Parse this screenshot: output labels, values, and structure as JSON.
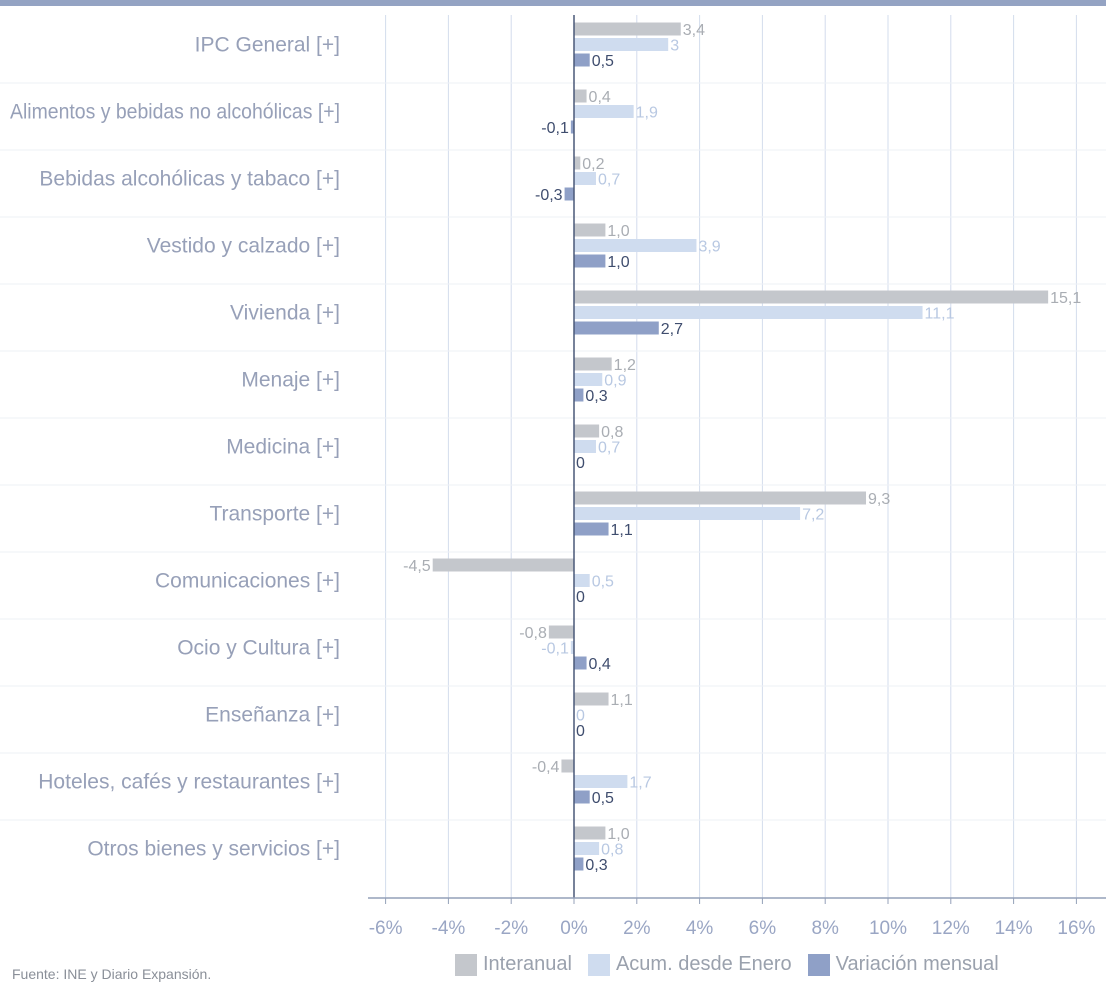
{
  "chart_data": {
    "type": "bar",
    "orientation": "horizontal",
    "categories": [
      "IPC General [+]",
      "Alimentos y bebidas no alcohólicas [+]",
      "Bebidas alcohólicas y tabaco [+]",
      "Vestido y calzado [+]",
      "Vivienda [+]",
      "Menaje [+]",
      "Medicina [+]",
      "Transporte [+]",
      "Comunicaciones [+]",
      "Ocio y Cultura [+]",
      "Enseñanza [+]",
      "Hoteles, cafés y restaurantes [+]",
      "Otros bienes y servicios [+]"
    ],
    "series": [
      {
        "name": "Interanual",
        "color": "#c4c7cc",
        "label_color": "#a9adb3",
        "values": [
          3.4,
          0.4,
          0.2,
          1.0,
          15.1,
          1.2,
          0.8,
          9.3,
          -4.5,
          -0.8,
          1.1,
          -0.4,
          1.0
        ],
        "labels": [
          "3,4",
          "0,4",
          "0,2",
          "1,0",
          "15,1",
          "1,2",
          "0,8",
          "9,3",
          "-4,5",
          "-0,8",
          "1,1",
          "-0,4",
          "1,0"
        ]
      },
      {
        "name": "Acum. desde Enero",
        "color": "#cfdcef",
        "label_color": "#b8c8e2",
        "values": [
          3,
          1.9,
          0.7,
          3.9,
          11.1,
          0.9,
          0.7,
          7.2,
          0.5,
          -0.1,
          0,
          1.7,
          0.8
        ],
        "labels": [
          "3",
          "1,9",
          "0,7",
          "3,9",
          "11,1",
          "0,9",
          "0,7",
          "7,2",
          "0,5",
          "-0,1",
          "0",
          "1,7",
          "0,8"
        ]
      },
      {
        "name": "Variación mensual",
        "color": "#8fa0c7",
        "label_color": "#3f4d6e",
        "values": [
          0.5,
          -0.1,
          -0.3,
          1.0,
          2.7,
          0.3,
          0,
          1.1,
          0,
          0.4,
          0,
          0.5,
          0.3
        ],
        "labels": [
          "0,5",
          "-0,1",
          "-0,3",
          "1,0",
          "2,7",
          "0,3",
          "0",
          "1,1",
          "0",
          "0,4",
          "0",
          "0,5",
          "0,3"
        ]
      }
    ],
    "xlim": [
      -6.5,
      16.5
    ],
    "xticks": [
      -6,
      -4,
      -2,
      0,
      2,
      4,
      6,
      8,
      10,
      12,
      14,
      16
    ],
    "xtick_labels": [
      "-6%",
      "-4%",
      "-2%",
      "0%",
      "2%",
      "4%",
      "6%",
      "8%",
      "10%",
      "12%",
      "14%",
      "16%"
    ],
    "grid": true,
    "legend_position": "bottom-right"
  },
  "footer": {
    "source": "Fuente: INE y Diario Expansión."
  },
  "colors": {
    "top_bar": "#94a3c3",
    "grid": "#d3dcec",
    "zero_axis": "#4a5878",
    "baseline": "#94a0b8"
  }
}
